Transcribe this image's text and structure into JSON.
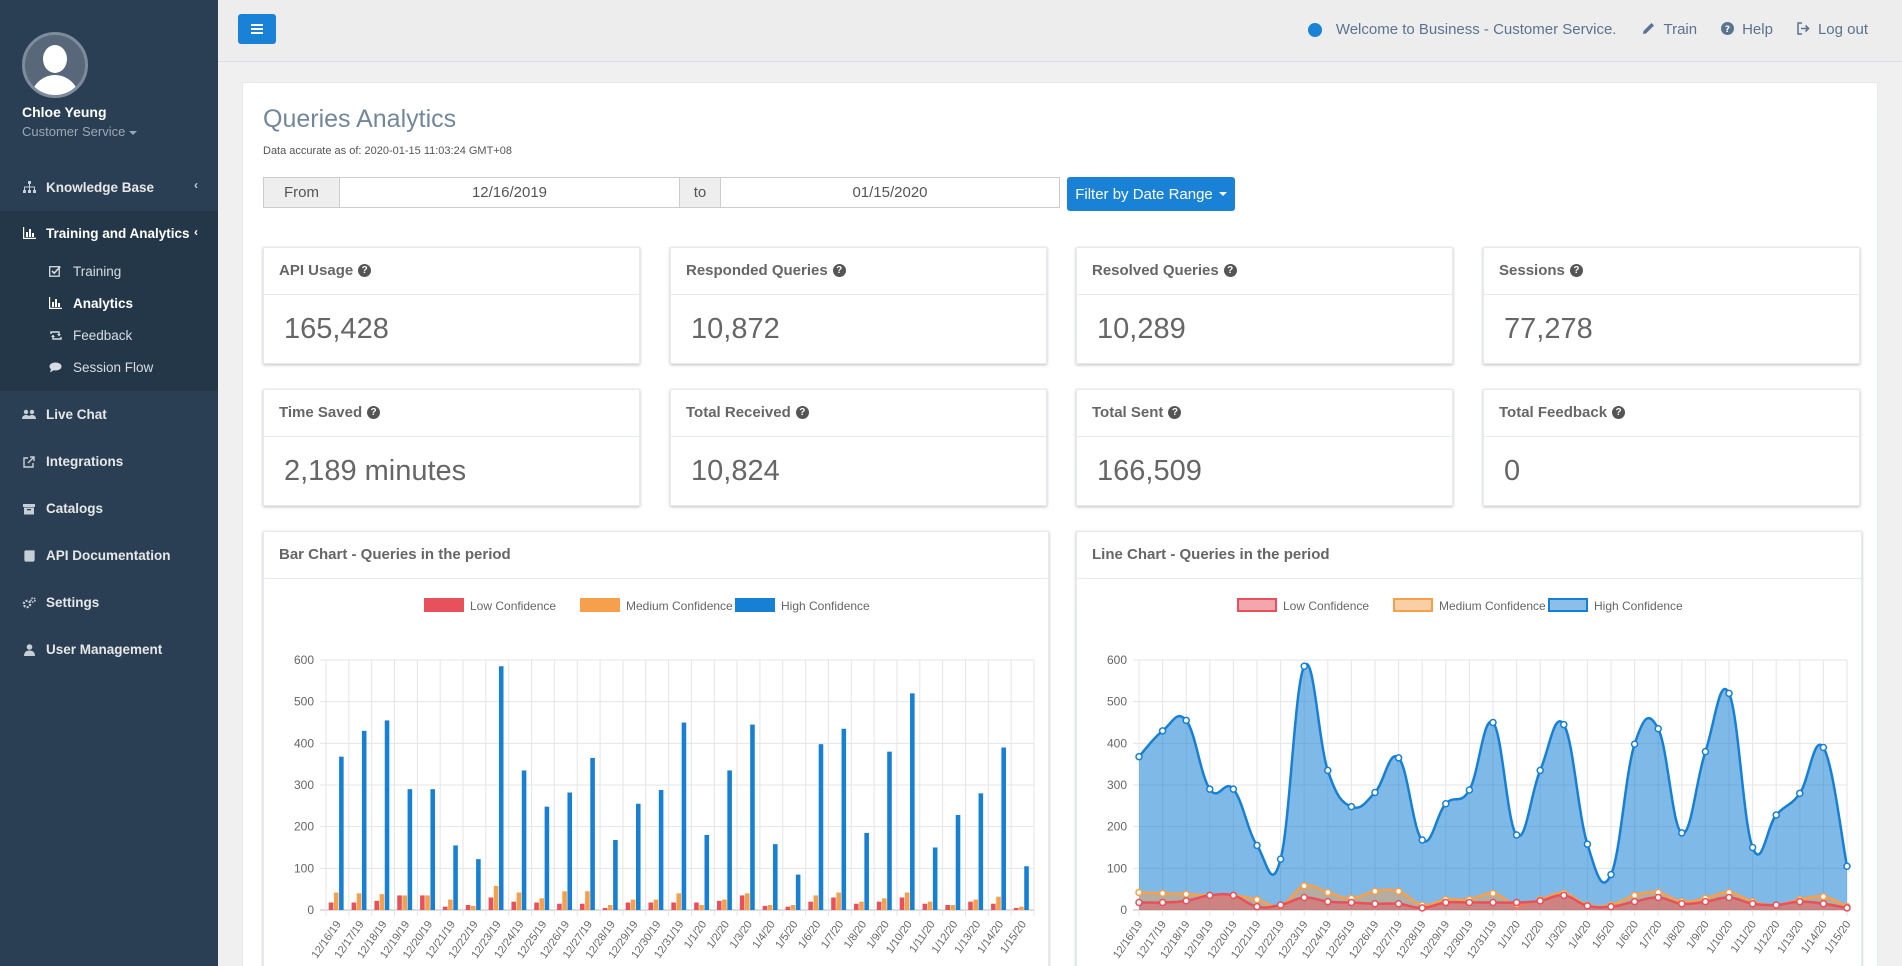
{
  "user": {
    "name": "Chloe Yeung",
    "role": "Customer Service"
  },
  "sidebar": {
    "items": [
      {
        "label": "Knowledge Base",
        "icon": "sitemap-icon"
      },
      {
        "label": "Training and Analytics",
        "icon": "bar-chart-icon"
      },
      {
        "label": "Live Chat",
        "icon": "users-icon"
      },
      {
        "label": "Integrations",
        "icon": "external-link-icon"
      },
      {
        "label": "Catalogs",
        "icon": "archive-icon"
      },
      {
        "label": "API Documentation",
        "icon": "book-icon"
      },
      {
        "label": "Settings",
        "icon": "cogs-icon"
      },
      {
        "label": "User Management",
        "icon": "user-icon"
      }
    ],
    "subitems": [
      {
        "label": "Training",
        "icon": "check-square-icon"
      },
      {
        "label": "Analytics",
        "icon": "bar-chart-icon"
      },
      {
        "label": "Feedback",
        "icon": "retweet-icon"
      },
      {
        "label": "Session Flow",
        "icon": "comment-icon"
      }
    ]
  },
  "topbar": {
    "welcome": "Welcome to Business - Customer Service.",
    "train": "Train",
    "help": "Help",
    "logout": "Log out"
  },
  "page": {
    "title": "Queries Analytics",
    "accuracy": "Data accurate as of: 2020-01-15 11:03:24 GMT+08",
    "from_label": "From",
    "to_label": "to",
    "from_date": "12/16/2019",
    "to_date": "01/15/2020",
    "filter_button": "Filter by Date Range"
  },
  "stats": [
    {
      "label": "API Usage",
      "value": "165,428"
    },
    {
      "label": "Responded Queries",
      "value": "10,872"
    },
    {
      "label": "Resolved Queries",
      "value": "10,289"
    },
    {
      "label": "Sessions",
      "value": "77,278"
    },
    {
      "label": "Time Saved",
      "value": "2,189 minutes"
    },
    {
      "label": "Total Received",
      "value": "10,824"
    },
    {
      "label": "Total Sent",
      "value": "166,509"
    },
    {
      "label": "Total Feedback",
      "value": "0"
    }
  ],
  "colors": {
    "low": "#e8505b",
    "medium": "#f7a04b",
    "high": "#1680d4",
    "brand": "#1a82d6",
    "sidebar": "#2a3f54"
  },
  "chart_data": [
    {
      "type": "bar",
      "title": "Bar Chart - Queries in the period",
      "legend_position": "top",
      "ylim": [
        0,
        600
      ],
      "yticks": [
        0,
        100,
        200,
        300,
        400,
        500,
        600
      ],
      "categories": [
        "12/16/19",
        "12/17/19",
        "12/18/19",
        "12/19/19",
        "12/20/19",
        "12/21/19",
        "12/22/19",
        "12/23/19",
        "12/24/19",
        "12/25/19",
        "12/26/19",
        "12/27/19",
        "12/28/19",
        "12/29/19",
        "12/30/19",
        "12/31/19",
        "1/1/20",
        "1/2/20",
        "1/3/20",
        "1/4/20",
        "1/5/20",
        "1/6/20",
        "1/7/20",
        "1/8/20",
        "1/9/20",
        "1/10/20",
        "1/11/20",
        "1/12/20",
        "1/13/20",
        "1/14/20",
        "1/15/20"
      ],
      "series": [
        {
          "name": "Low Confidence",
          "values": [
            18,
            18,
            22,
            35,
            35,
            8,
            12,
            30,
            20,
            18,
            15,
            15,
            5,
            18,
            18,
            18,
            18,
            22,
            35,
            10,
            8,
            20,
            30,
            15,
            20,
            30,
            15,
            12,
            20,
            15,
            5
          ]
        },
        {
          "name": "Medium Confidence",
          "values": [
            42,
            40,
            38,
            35,
            35,
            25,
            10,
            58,
            42,
            28,
            45,
            45,
            12,
            25,
            25,
            40,
            12,
            25,
            40,
            12,
            12,
            35,
            42,
            20,
            28,
            42,
            20,
            12,
            25,
            32,
            8
          ]
        },
        {
          "name": "High Confidence",
          "values": [
            368,
            430,
            455,
            290,
            290,
            155,
            122,
            585,
            335,
            248,
            282,
            365,
            168,
            255,
            288,
            450,
            180,
            335,
            445,
            158,
            85,
            398,
            435,
            185,
            380,
            520,
            150,
            228,
            280,
            390,
            105
          ]
        }
      ]
    },
    {
      "type": "area",
      "title": "Line Chart - Queries in the period",
      "legend_position": "top",
      "ylim": [
        0,
        600
      ],
      "yticks": [
        0,
        100,
        200,
        300,
        400,
        500,
        600
      ],
      "categories": [
        "12/16/19",
        "12/17/19",
        "12/18/19",
        "12/19/19",
        "12/20/19",
        "12/21/19",
        "12/22/19",
        "12/23/19",
        "12/24/19",
        "12/25/19",
        "12/26/19",
        "12/27/19",
        "12/28/19",
        "12/29/19",
        "12/30/19",
        "12/31/19",
        "1/1/20",
        "1/2/20",
        "1/3/20",
        "1/4/20",
        "1/5/20",
        "1/6/20",
        "1/7/20",
        "1/8/20",
        "1/9/20",
        "1/10/20",
        "1/11/20",
        "1/12/20",
        "1/13/20",
        "1/14/20",
        "1/15/20"
      ],
      "series": [
        {
          "name": "Low Confidence",
          "values": [
            18,
            18,
            22,
            35,
            35,
            8,
            12,
            30,
            20,
            18,
            15,
            15,
            5,
            18,
            18,
            18,
            18,
            22,
            35,
            10,
            8,
            20,
            30,
            15,
            20,
            30,
            15,
            12,
            20,
            15,
            5
          ]
        },
        {
          "name": "Medium Confidence",
          "values": [
            42,
            40,
            38,
            35,
            35,
            25,
            10,
            58,
            42,
            28,
            45,
            45,
            12,
            25,
            25,
            40,
            12,
            25,
            40,
            12,
            12,
            35,
            42,
            20,
            28,
            42,
            20,
            12,
            25,
            32,
            8
          ]
        },
        {
          "name": "High Confidence",
          "values": [
            368,
            430,
            455,
            290,
            290,
            155,
            122,
            585,
            335,
            248,
            282,
            365,
            168,
            255,
            288,
            450,
            180,
            335,
            445,
            158,
            85,
            398,
            435,
            185,
            380,
            520,
            150,
            228,
            280,
            390,
            105
          ]
        }
      ]
    }
  ]
}
